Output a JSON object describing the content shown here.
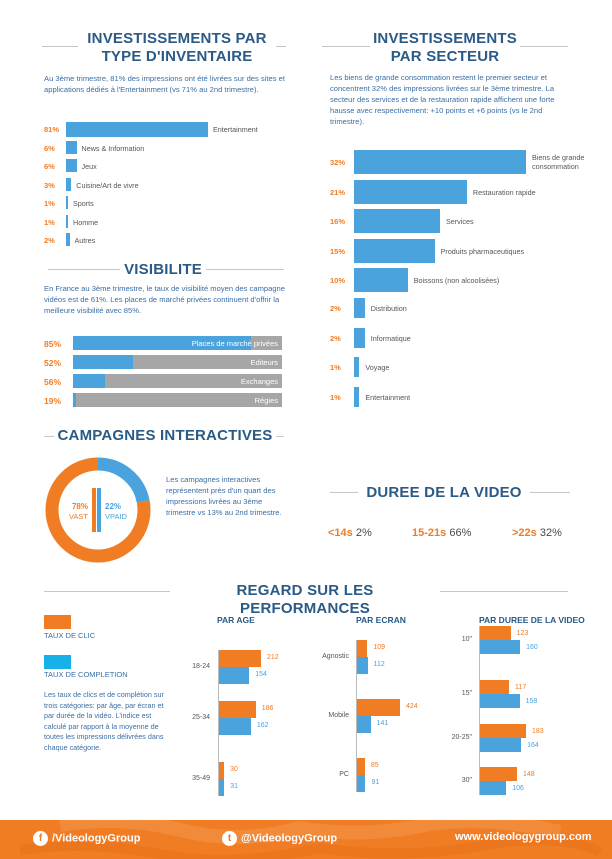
{
  "inventory": {
    "title_line1": "INVESTISSEMENTS PAR",
    "title_line2": "TYPE D'INVENTAIRE",
    "description": "Au 3ème trimestre, 81% des impressions ont été livrées sur des sites et applications dédiés à l'Entertainment (vs 71% au 2nd trimestre).",
    "items": [
      {
        "pct": "81%",
        "label": "Entertainment",
        "value": 81
      },
      {
        "pct": "6%",
        "label": "News & Information",
        "value": 6
      },
      {
        "pct": "6%",
        "label": "Jeux",
        "value": 6
      },
      {
        "pct": "3%",
        "label": "Cuisine/Art de vivre",
        "value": 3
      },
      {
        "pct": "1%",
        "label": "Sports",
        "value": 1
      },
      {
        "pct": "1%",
        "label": "Homme",
        "value": 1
      },
      {
        "pct": "2%",
        "label": "Autres",
        "value": 2
      }
    ]
  },
  "sector": {
    "title_line1": "INVESTISSEMENTS",
    "title_line2": "PAR SECTEUR",
    "description": "Les biens de grande consommation restent le premier secteur et concentrent 32% des impressions livrées sur le 3ème trimestre. La secteur des services et de la restauration rapide affichent une forte hausse avec respectivement: +10 points et +6 points (vs le 2nd trimestre).",
    "items": [
      {
        "pct": "32%",
        "label": "Biens de grande consommation",
        "value": 32
      },
      {
        "pct": "21%",
        "label": "Restauration rapide",
        "value": 21
      },
      {
        "pct": "16%",
        "label": "Services",
        "value": 16
      },
      {
        "pct": "15%",
        "label": "Produits pharmaceutiques",
        "value": 15
      },
      {
        "pct": "10%",
        "label": "Boissons (non alcoolisées)",
        "value": 10
      },
      {
        "pct": "2%",
        "label": "Distribution",
        "value": 2
      },
      {
        "pct": "2%",
        "label": "Informatique",
        "value": 2
      },
      {
        "pct": "1%",
        "label": "Voyage",
        "value": 1
      },
      {
        "pct": "1%",
        "label": "Entertainment",
        "value": 1
      }
    ]
  },
  "visibility": {
    "title": "VISIBILITE",
    "description": "En France au 3ème trimestre, le taux de visibilité moyen des campagne vidéos est de 61%. Les places de marché privées continuent d'offrir la meilleure visibilité avec 85%.",
    "items": [
      {
        "pct": "85%",
        "label": "Places de marché privées",
        "value": 85
      },
      {
        "pct": "52%",
        "label": "Editeurs",
        "value": 52
      },
      {
        "pct": "56%",
        "label": "Exchanges",
        "value": 56
      },
      {
        "pct": "19%",
        "label": "Régies",
        "value": 19
      }
    ]
  },
  "interactive": {
    "title": "CAMPAGNES INTERACTIVES",
    "vast_pct": "78%",
    "vast_label": "VAST",
    "vpaid_pct": "22%",
    "vpaid_label": "VPAID",
    "vast_value": 78,
    "vpaid_value": 22,
    "description": "Les campagnes interactives représentent près d'un quart des impressions livrées au 3ème trimestre vs 13% au 2nd trimestre."
  },
  "duration": {
    "title": "DUREE DE LA VIDEO",
    "items": [
      {
        "range": "<14s",
        "pct": "2%"
      },
      {
        "range": "15-21s",
        "pct": "66%"
      },
      {
        "range": ">22s",
        "pct": "32%"
      }
    ]
  },
  "performance": {
    "title": "REGARD SUR LES PERFORMANCES",
    "legend_click": "TAUX DE CLIC",
    "legend_completion": "TAUX DE COMPLETION",
    "description": "Les taux de clics et de complétion sur trois catégories: par âge, par écran et par durée de la vidéo. L'indice est calculé par rapport à la moyenne de toutes les impressions délivrées dans chaque catégorie.",
    "colors": {
      "click": "#f07c23",
      "completion": "#4aa3dc"
    },
    "groups": [
      {
        "title": "PAR AGE",
        "rows": [
          {
            "label": "18-24",
            "click": 212,
            "completion": 154
          },
          {
            "label": "25-34",
            "click": 186,
            "completion": 162
          },
          {
            "label": "35-49",
            "click": 30,
            "completion": 31
          }
        ]
      },
      {
        "title": "PAR ECRAN",
        "rows": [
          {
            "label": "Agnostic",
            "click": 109,
            "completion": 112
          },
          {
            "label": "Mobile",
            "click": 424,
            "completion": 141
          },
          {
            "label": "PC",
            "click": 85,
            "completion": 91
          }
        ]
      },
      {
        "title": "PAR DUREE DE LA VIDEO",
        "rows": [
          {
            "label": "10\"",
            "click": 123,
            "completion": 160
          },
          {
            "label": "15\"",
            "click": 117,
            "completion": 158
          },
          {
            "label": "20-25\"",
            "click": 183,
            "completion": 164
          },
          {
            "label": "30\"",
            "click": 148,
            "completion": 106
          }
        ]
      }
    ]
  },
  "footer": {
    "facebook": "/VideologyGroup",
    "twitter": "@VideologyGroup",
    "website": "www.videologygroup.com"
  }
}
